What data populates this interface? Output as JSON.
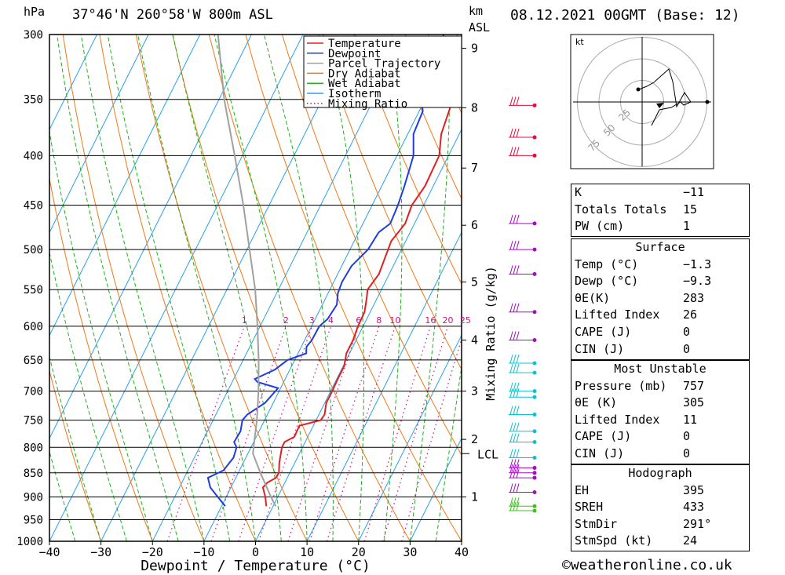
{
  "header": {
    "hpa": "hPa",
    "location": "37°46'N 260°58'W 800m ASL",
    "km": "km",
    "asl": "ASL",
    "datetime": "08.12.2021 00GMT (Base: 12)"
  },
  "chart_data": {
    "type": "line",
    "xlabel": "Dewpoint / Temperature (°C)",
    "ylabel": "hPa",
    "x_ticks": [
      -40,
      -30,
      -20,
      -10,
      0,
      10,
      20,
      30,
      40
    ],
    "x_tick_labels": [
      "-40",
      "-30",
      "-20",
      "-10",
      "0",
      "10",
      "20",
      "30",
      "40"
    ],
    "y_ticks": [
      300,
      350,
      400,
      450,
      500,
      550,
      600,
      650,
      700,
      750,
      800,
      850,
      900,
      950,
      1000
    ],
    "km_ticks": [
      {
        "p": 310,
        "label": "9"
      },
      {
        "p": 357,
        "label": "8"
      },
      {
        "p": 412,
        "label": "7"
      },
      {
        "p": 472,
        "label": "6"
      },
      {
        "p": 540,
        "label": "5"
      },
      {
        "p": 620,
        "label": "4"
      },
      {
        "p": 700,
        "label": "3"
      },
      {
        "p": 785,
        "label": "2"
      },
      {
        "p": 900,
        "label": "1"
      }
    ],
    "lcl": {
      "p": 812,
      "label": "LCL"
    },
    "mixing_ratio_axis_label": "Mixing Ratio (g/kg)",
    "mixing_ratio_labels": [
      "1",
      "2",
      "3",
      "4",
      "6",
      "8",
      "10",
      "16",
      "20",
      "25"
    ],
    "legend": [
      "Temperature",
      "Dewpoint",
      "Parcel Trajectory",
      "Dry Adiabat",
      "Wet Adiabat",
      "Isotherm",
      "Mixing Ratio"
    ],
    "colors": {
      "temperature": "#e02020",
      "dewpoint": "#1e3ce0",
      "parcel": "#a0a0a0",
      "dry": "#f07818",
      "wet": "#20b020",
      "isotherm": "#2aa0e8",
      "mixing": "#d01080"
    },
    "series": [
      {
        "name": "Temperature",
        "points": [
          [
            300,
            -6.7
          ],
          [
            320,
            -5.8
          ],
          [
            350,
            -4.6
          ],
          [
            380,
            -3.5
          ],
          [
            400,
            -1.8
          ],
          [
            430,
            -1.6
          ],
          [
            450,
            -2.3
          ],
          [
            470,
            -1.8
          ],
          [
            490,
            -2.8
          ],
          [
            510,
            -2.4
          ],
          [
            530,
            -2.0
          ],
          [
            550,
            -2.7
          ],
          [
            560,
            -2.1
          ],
          [
            580,
            -1.1
          ],
          [
            600,
            -1.0
          ],
          [
            620,
            -0.6
          ],
          [
            640,
            -0.6
          ],
          [
            660,
            0.2
          ],
          [
            680,
            0.2
          ],
          [
            700,
            0.3
          ],
          [
            720,
            0.3
          ],
          [
            740,
            1.1
          ],
          [
            750,
            0.9
          ],
          [
            760,
            -2.7
          ],
          [
            780,
            -2.6
          ],
          [
            790,
            -4.0
          ],
          [
            800,
            -4.0
          ],
          [
            830,
            -3.0
          ],
          [
            850,
            -2.1
          ],
          [
            860,
            -2.2
          ],
          [
            870,
            -3.4
          ],
          [
            880,
            -3.8
          ],
          [
            900,
            -2.4
          ],
          [
            920,
            -1.3
          ]
        ]
      },
      {
        "name": "Dewpoint",
        "points": [
          [
            300,
            -12.7
          ],
          [
            320,
            -11.4
          ],
          [
            340,
            -11.7
          ],
          [
            350,
            -10.7
          ],
          [
            360,
            -9.3
          ],
          [
            380,
            -8.9
          ],
          [
            400,
            -6.8
          ],
          [
            430,
            -5.6
          ],
          [
            450,
            -5.0
          ],
          [
            470,
            -4.7
          ],
          [
            480,
            -6.1
          ],
          [
            500,
            -6.5
          ],
          [
            520,
            -8.1
          ],
          [
            540,
            -8.4
          ],
          [
            555,
            -8.1
          ],
          [
            570,
            -7.2
          ],
          [
            590,
            -7.6
          ],
          [
            600,
            -8.5
          ],
          [
            620,
            -8.6
          ],
          [
            630,
            -9.0
          ],
          [
            640,
            -8.4
          ],
          [
            650,
            -11.4
          ],
          [
            665,
            -12.9
          ],
          [
            680,
            -15.9
          ],
          [
            685,
            -15.1
          ],
          [
            695,
            -10.5
          ],
          [
            720,
            -11.6
          ],
          [
            740,
            -13.9
          ],
          [
            750,
            -14.3
          ],
          [
            770,
            -13.6
          ],
          [
            790,
            -13.8
          ],
          [
            800,
            -12.8
          ],
          [
            820,
            -12.4
          ],
          [
            845,
            -13.1
          ],
          [
            860,
            -15.4
          ],
          [
            880,
            -14.0
          ],
          [
            920,
            -9.3
          ]
        ]
      },
      {
        "name": "Parcel Trajectory",
        "points": [
          [
            300,
            -56.5
          ],
          [
            350,
            -49.0
          ],
          [
            400,
            -41.5
          ],
          [
            450,
            -35.0
          ],
          [
            500,
            -29.5
          ],
          [
            550,
            -24.5
          ],
          [
            600,
            -20.5
          ],
          [
            650,
            -17.0
          ],
          [
            700,
            -14.0
          ],
          [
            750,
            -11.5
          ],
          [
            800,
            -9.5
          ],
          [
            812,
            -9.0
          ],
          [
            850,
            -5.7
          ],
          [
            900,
            -1.3
          ],
          [
            920,
            0.5
          ]
        ]
      }
    ],
    "wind_barbs_p": [
      355,
      383,
      400,
      470,
      500,
      530,
      580,
      620,
      655,
      670,
      700,
      710,
      740,
      770,
      790,
      820,
      840,
      850,
      860,
      890,
      920,
      930
    ],
    "hodograph": {
      "unit": "kt",
      "ring_labels": [
        "25",
        "50",
        "75"
      ]
    }
  },
  "indices": [
    {
      "label": "K",
      "value": "-11"
    },
    {
      "label": "Totals Totals",
      "value": "15"
    },
    {
      "label": "PW (cm)",
      "value": "1"
    }
  ],
  "surface": {
    "title": "Surface",
    "rows": [
      {
        "label": "Temp (°C)",
        "value": "-1.3"
      },
      {
        "label": "Dewp (°C)",
        "value": "-9.3"
      },
      {
        "label": "θE(K)",
        "value": "283"
      },
      {
        "label": "Lifted Index",
        "value": "26"
      },
      {
        "label": "CAPE (J)",
        "value": "0"
      },
      {
        "label": "CIN (J)",
        "value": "0"
      }
    ]
  },
  "most_unstable": {
    "title": "Most Unstable",
    "rows": [
      {
        "label": "Pressure (mb)",
        "value": "757"
      },
      {
        "label": "θE (K)",
        "value": "305"
      },
      {
        "label": "Lifted Index",
        "value": "11"
      },
      {
        "label": "CAPE (J)",
        "value": "0"
      },
      {
        "label": "CIN (J)",
        "value": "0"
      }
    ]
  },
  "hodograph_table": {
    "title": "Hodograph",
    "rows": [
      {
        "label": "EH",
        "value": "395"
      },
      {
        "label": "SREH",
        "value": "433"
      },
      {
        "label": "StmDir",
        "value": "291°"
      },
      {
        "label": "StmSpd (kt)",
        "value": "24"
      }
    ]
  },
  "credit": "©weatheronline.co.uk"
}
